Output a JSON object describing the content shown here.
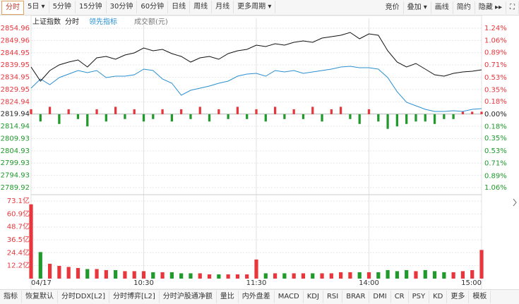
{
  "toolbar": {
    "periods": [
      "分时",
      "5日 ▾",
      "5分钟",
      "15分钟",
      "30分钟",
      "60分钟",
      "日线",
      "周线",
      "月线",
      "更多周期 ▾"
    ],
    "tools": [
      "竞价",
      "叠加 ▾",
      "画线",
      "简约",
      "隐藏 ▸▸"
    ]
  },
  "chart_data": [
    {
      "type": "line",
      "title": "上证指数",
      "up_color": "#e8363c",
      "down_color": "#1f9a2b",
      "x": [
        0,
        5,
        10,
        15,
        20,
        25,
        30,
        35,
        40,
        45,
        50,
        55,
        60,
        65,
        70,
        75,
        80,
        85,
        90,
        95,
        100,
        105,
        110,
        115,
        120,
        125,
        130,
        135,
        140,
        145,
        150,
        155,
        160,
        165,
        170,
        175,
        180,
        185,
        190,
        195,
        200,
        205,
        210,
        215,
        220,
        225,
        230,
        235,
        240
      ],
      "xlim": [
        0,
        240
      ],
      "ylim": [
        2789.92,
        2854.96
      ],
      "yticks": [
        2854.96,
        2849.96,
        2844.95,
        2839.95,
        2834.95,
        2829.95,
        2824.94,
        2819.94,
        2814.94,
        2809.93,
        2804.93,
        2799.93,
        2794.93,
        2789.92
      ],
      "y2lim": [
        -1.06,
        1.24
      ],
      "y2ticks": [
        {
          "value": 1.24,
          "label": "1.24%"
        },
        {
          "value": 1.06,
          "label": "1.06%"
        },
        {
          "value": 0.89,
          "label": "0.89%"
        },
        {
          "value": 0.71,
          "label": "0.71%"
        },
        {
          "value": 0.53,
          "label": "0.53%"
        },
        {
          "value": 0.35,
          "label": "0.35%"
        },
        {
          "value": 0.18,
          "label": "0.18%"
        },
        {
          "value": 0,
          "label": "0.00%"
        },
        {
          "value": -0.18,
          "label": "0.18%"
        },
        {
          "value": -0.35,
          "label": "0.35%"
        },
        {
          "value": -0.53,
          "label": "0.53%"
        },
        {
          "value": -0.71,
          "label": "0.71%"
        },
        {
          "value": -0.89,
          "label": "0.89%"
        },
        {
          "value": -1.06,
          "label": "1.06%"
        }
      ],
      "series": [
        {
          "name": "分时",
          "color": "#111111",
          "values": [
            2839.13,
            2833.37,
            2837.69,
            2839.99,
            2841.15,
            2842.01,
            2839.13,
            2842.87,
            2843.45,
            2842.3,
            2844.02,
            2844.89,
            2846.9,
            2845.75,
            2846.33,
            2844.6,
            2843.45,
            2841.15,
            2842.87,
            2843.45,
            2842.3,
            2844.6,
            2845.75,
            2846.33,
            2848.05,
            2847.48,
            2848.63,
            2848.05,
            2849.2,
            2849.78,
            2849.2,
            2850.93,
            2851.51,
            2852.08,
            2853.23,
            2850.64,
            2852.66,
            2852.08,
            2845.75,
            2841.15,
            2839.13,
            2840.57,
            2838.27,
            2835.97,
            2835.39,
            2836.54,
            2837.12,
            2837.4,
            2837.98
          ]
        },
        {
          "name": "领先指标",
          "color": "#2a8fd0",
          "values": [
            2830.5,
            2834.24,
            2831.94,
            2834.81,
            2836.25,
            2837.69,
            2836.83,
            2837.69,
            2834.81,
            2835.39,
            2835.39,
            2835.97,
            2838.27,
            2837.69,
            2834.24,
            2832.51,
            2827.62,
            2829.63,
            2830.5,
            2831.36,
            2832.51,
            2833.37,
            2835.39,
            2836.25,
            2836.54,
            2835.39,
            2837.69,
            2837.12,
            2837.69,
            2836.54,
            2837.12,
            2837.69,
            2838.27,
            2839.13,
            2839.42,
            2838.84,
            2838.84,
            2838.27,
            2834.81,
            2829.06,
            2824.74,
            2823.3,
            2821.86,
            2821.0,
            2821.0,
            2821.29,
            2821.0,
            2821.86,
            2822.15
          ]
        }
      ],
      "histogram": [
        2,
        -3,
        3,
        -4,
        2,
        -2,
        -5,
        2,
        -3,
        3,
        -2,
        2,
        -3,
        -2,
        2,
        -3,
        2,
        -2,
        3,
        -3,
        2,
        -2,
        3,
        -2,
        2,
        -3,
        3,
        -2,
        2,
        -2,
        3,
        -3,
        2,
        3,
        -2,
        -4,
        2,
        -3,
        -6,
        -5,
        -4,
        -3,
        -3,
        -4,
        -2,
        -2,
        1,
        1,
        1
      ]
    },
    {
      "type": "bar",
      "title": "成交额(元)",
      "up_color": "#e8363c",
      "down_color": "#1f9a2b",
      "x": [
        0,
        5,
        10,
        15,
        20,
        25,
        30,
        35,
        40,
        45,
        50,
        55,
        60,
        65,
        70,
        75,
        80,
        85,
        90,
        95,
        100,
        105,
        110,
        115,
        120,
        125,
        130,
        135,
        140,
        145,
        150,
        155,
        160,
        165,
        170,
        175,
        180,
        185,
        190,
        195,
        200,
        205,
        210,
        215,
        220,
        225,
        230,
        235,
        240
      ],
      "xlim": [
        0,
        240
      ],
      "xticks": [
        {
          "value": 0,
          "label": "04/17"
        },
        {
          "value": 60,
          "label": "10:30"
        },
        {
          "value": 120,
          "label": "11:30"
        },
        {
          "value": 180,
          "label": "14:00"
        },
        {
          "value": 240,
          "label": "15:00"
        }
      ],
      "ylim": [
        0,
        73.1
      ],
      "yticks": [
        {
          "value": 73.1,
          "label": "73.1亿"
        },
        {
          "value": 60.9,
          "label": "60.9亿"
        },
        {
          "value": 48.7,
          "label": "48.7亿"
        },
        {
          "value": 36.5,
          "label": "36.5亿"
        },
        {
          "value": 24.4,
          "label": "24.4亿"
        },
        {
          "value": 12.2,
          "label": "12.2亿"
        }
      ],
      "values": [
        70,
        25,
        14,
        12,
        11,
        10,
        9,
        9,
        8,
        8,
        7,
        7,
        7,
        6,
        6,
        6,
        5,
        5,
        5,
        4,
        4,
        4,
        4,
        4,
        18,
        5,
        5,
        5,
        5,
        5,
        5,
        5,
        5,
        6,
        6,
        6,
        6,
        6,
        8,
        7,
        8,
        7,
        8,
        7,
        6,
        6,
        7,
        8,
        27
      ]
    }
  ],
  "indicator_tabs": [
    "指标",
    "恢复默认",
    "分时DDX[L2]",
    "分时博弈[L2]",
    "分时沪股通净额",
    "量比",
    "内外盘差",
    "MACD",
    "KDJ",
    "RSI",
    "BRAR",
    "DMI",
    "CR",
    "PSY",
    "KD",
    "更多",
    "模板"
  ]
}
